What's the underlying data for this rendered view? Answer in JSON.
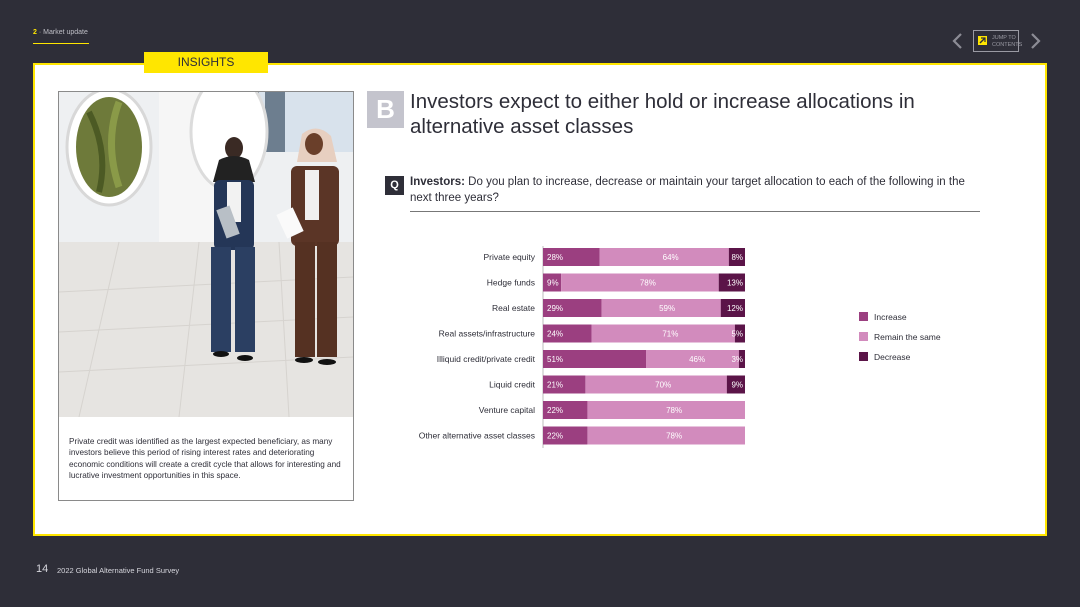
{
  "header": {
    "section_number": "2",
    "section_label": "Market update",
    "jump_line1": "JUMP TO",
    "jump_line2": "CONTENTS",
    "insights_tab": "INSIGHTS"
  },
  "slide": {
    "badge": "B",
    "title": "Investors expect to either hold or increase allocations in alternative asset classes",
    "q_badge": "Q",
    "question_lead": "Investors:",
    "question_text": "Do you plan to increase, decrease or maintain your target allocation to each of the following in the next three years?",
    "caption": "Private credit was identified as the largest expected beneficiary, as many investors believe this period of rising interest rates and deteriorating economic conditions will create a credit cycle that allows for interesting and lucrative investment opportunities in this space."
  },
  "footer": {
    "page_number": "14",
    "report_title": "2022 Global Alternative Fund Survey"
  },
  "colors": {
    "increase": "#9b3f80",
    "remain": "#d28bbd",
    "decrease": "#5b1448",
    "accent_yellow": "#ffe600",
    "dark": "#2e2e38"
  },
  "chart_data": {
    "type": "bar",
    "orientation": "horizontal",
    "stacked": true,
    "unit": "%",
    "categories": [
      "Private equity",
      "Hedge funds",
      "Real estate",
      "Real assets/infrastructure",
      "Illiquid credit/private credit",
      "Liquid credit",
      "Venture capital",
      "Other alternative asset classes"
    ],
    "series": [
      {
        "name": "Increase",
        "values": [
          28,
          9,
          29,
          24,
          51,
          21,
          22,
          22
        ]
      },
      {
        "name": "Remain the same",
        "values": [
          64,
          78,
          59,
          71,
          46,
          70,
          78,
          78
        ]
      },
      {
        "name": "Decrease",
        "values": [
          8,
          13,
          12,
          5,
          3,
          9,
          0,
          0
        ]
      }
    ],
    "xlim": [
      0,
      100
    ],
    "legend_position": "right"
  }
}
